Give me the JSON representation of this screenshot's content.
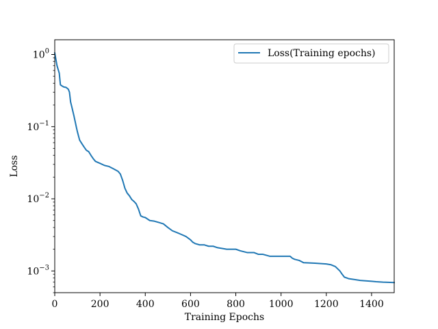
{
  "chart_data": {
    "type": "line",
    "xlabel": "Training Epochs",
    "ylabel": "Loss",
    "xlim": [
      0,
      1500
    ],
    "ylim": [
      0.0005,
      1.6
    ],
    "yscale": "log",
    "grid": false,
    "legend_position": "top-right",
    "x_ticks": [
      0,
      200,
      400,
      600,
      800,
      1000,
      1200,
      1400
    ],
    "x_tick_labels": [
      "0",
      "200",
      "400",
      "600",
      "800",
      "1000",
      "1200",
      "1400"
    ],
    "y_ticks": [
      0.001,
      0.01,
      0.1,
      1
    ],
    "y_tick_labels": [
      {
        "base": "10",
        "exp": "−3"
      },
      {
        "base": "10",
        "exp": "−2"
      },
      {
        "base": "10",
        "exp": "−1"
      },
      {
        "base": "10",
        "exp": "0"
      }
    ],
    "series": [
      {
        "name": "Loss(Training epochs)",
        "color": "#1f77b4",
        "x": [
          0,
          10,
          20,
          25,
          30,
          40,
          50,
          60,
          65,
          70,
          75,
          85,
          95,
          100,
          110,
          120,
          130,
          140,
          150,
          160,
          170,
          180,
          200,
          220,
          240,
          260,
          280,
          290,
          300,
          310,
          320,
          330,
          340,
          350,
          360,
          370,
          380,
          390,
          400,
          420,
          440,
          460,
          480,
          500,
          520,
          540,
          560,
          580,
          600,
          610,
          620,
          640,
          660,
          680,
          700,
          720,
          760,
          800,
          820,
          850,
          880,
          900,
          920,
          950,
          1000,
          1040,
          1050,
          1060,
          1080,
          1100,
          1150,
          1200,
          1220,
          1240,
          1260,
          1270,
          1280,
          1300,
          1350,
          1400,
          1420,
          1450,
          1500
        ],
        "y": [
          1.05,
          0.7,
          0.55,
          0.38,
          0.37,
          0.355,
          0.35,
          0.33,
          0.3,
          0.22,
          0.19,
          0.14,
          0.1,
          0.085,
          0.065,
          0.058,
          0.052,
          0.047,
          0.045,
          0.04,
          0.036,
          0.033,
          0.031,
          0.029,
          0.028,
          0.026,
          0.024,
          0.022,
          0.018,
          0.014,
          0.012,
          0.011,
          0.0098,
          0.0092,
          0.0085,
          0.0072,
          0.0058,
          0.0056,
          0.0055,
          0.005,
          0.0049,
          0.0047,
          0.0045,
          0.004,
          0.0036,
          0.0034,
          0.0032,
          0.003,
          0.0027,
          0.0025,
          0.0024,
          0.0023,
          0.0023,
          0.0022,
          0.0022,
          0.0021,
          0.002,
          0.002,
          0.0019,
          0.0018,
          0.0018,
          0.0017,
          0.0017,
          0.0016,
          0.0016,
          0.0016,
          0.0015,
          0.00145,
          0.0014,
          0.0013,
          0.00128,
          0.00125,
          0.00122,
          0.00115,
          0.001,
          0.0009,
          0.00082,
          0.00078,
          0.00074,
          0.00072,
          0.00071,
          0.0007,
          0.00069
        ]
      }
    ]
  }
}
